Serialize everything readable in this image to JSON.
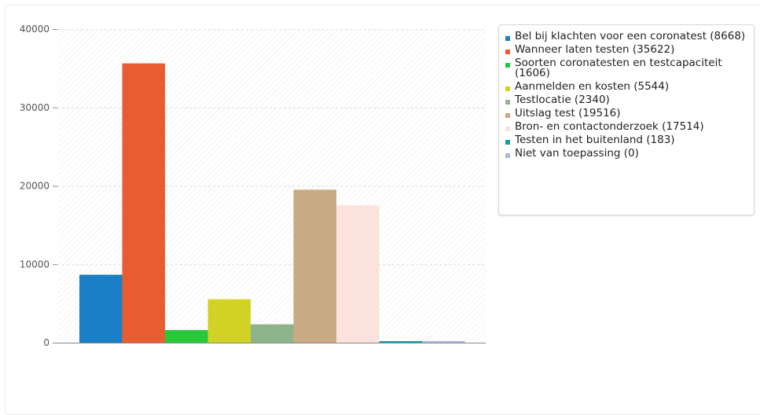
{
  "chart_data": {
    "type": "bar",
    "categories": [
      "Bel bij klachten voor een coronatest (8668)",
      "Wanneer laten testen (35622)",
      "Soorten coronatesten en testcapaciteit (1606)",
      "Aanmelden en kosten (5544)",
      "Testlocatie (2340)",
      "Uitslag test (19516)",
      "Bron- en contactonderzoek (17514)",
      "Testen in het buitenland (183)",
      "Niet van toepassing (0)"
    ],
    "values": [
      8668,
      35622,
      1606,
      5544,
      2340,
      19516,
      17514,
      183,
      0
    ],
    "colors": [
      "#1a7fc4",
      "#e85c31",
      "#27c93a",
      "#d2d225",
      "#8cb38a",
      "#c8ab85",
      "#fbe2dc",
      "#1a9aa8",
      "#a7b8e3"
    ],
    "ylim": [
      0,
      40000
    ],
    "yticks": [
      "0",
      "10000",
      "20000",
      "30000",
      "40000"
    ],
    "grid": true,
    "legend_position": "right",
    "title": "",
    "xlabel": "",
    "ylabel": ""
  }
}
